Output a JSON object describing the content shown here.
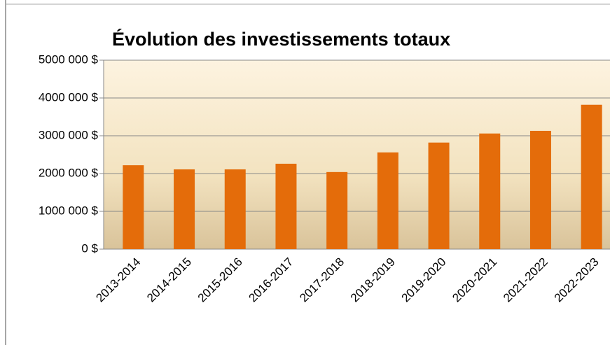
{
  "chart_data": {
    "type": "bar",
    "title": "Évolution des investissements totaux",
    "categories": [
      "2013-2014",
      "2014-2015",
      "2015-2016",
      "2016-2017",
      "2017-2018",
      "2018-2019",
      "2019-2020",
      "2020-2021",
      "2021-2022",
      "2022-2023"
    ],
    "values": [
      2220000,
      2110000,
      2110000,
      2260000,
      2040000,
      2560000,
      2820000,
      3060000,
      3130000,
      3820000
    ],
    "color": "#e46c0a",
    "ylim": [
      0,
      5000000
    ],
    "yticks": [
      {
        "value": 0,
        "label": "0 $"
      },
      {
        "value": 1000000,
        "label": "1000 000 $"
      },
      {
        "value": 2000000,
        "label": "2000 000 $"
      },
      {
        "value": 3000000,
        "label": "3000 000 $"
      },
      {
        "value": 4000000,
        "label": "4000 000 $"
      },
      {
        "value": 5000000,
        "label": "5000 000 $"
      }
    ],
    "grid": true
  }
}
